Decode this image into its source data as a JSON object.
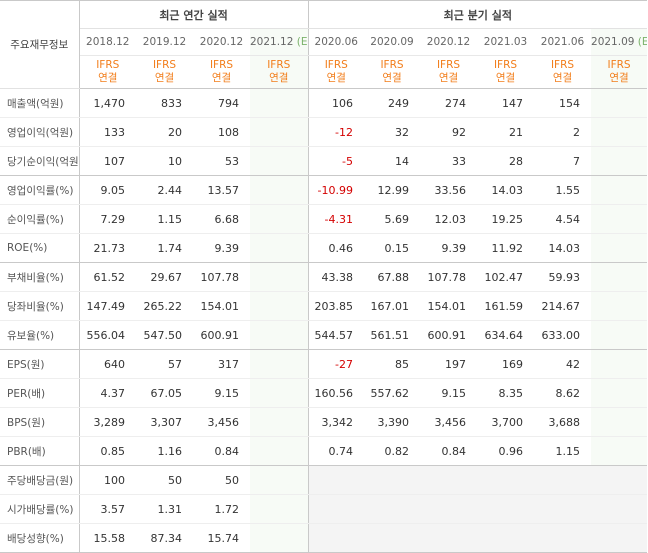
{
  "header": {
    "row_title": "주요재무정보",
    "annual_group": "최근 연간 실적",
    "quarter_group": "최근 분기 실적",
    "annual_periods": [
      "2018.12",
      "2019.12",
      "2020.12",
      "2021.12"
    ],
    "annual_est_marker": "(E)",
    "quarter_periods": [
      "2020.06",
      "2020.09",
      "2020.12",
      "2021.03",
      "2021.06",
      "2021.09"
    ],
    "quarter_est_marker": "(E)",
    "ifrs_top": "IFRS",
    "ifrs_bottom": "연결"
  },
  "rows": [
    {
      "label": "매출액(억원)",
      "annual": [
        "1,470",
        "833",
        "794",
        ""
      ],
      "quarter": [
        "106",
        "249",
        "274",
        "147",
        "154",
        ""
      ]
    },
    {
      "label": "영업이익(억원)",
      "annual": [
        "133",
        "20",
        "108",
        ""
      ],
      "quarter": [
        "-12",
        "32",
        "92",
        "21",
        "2",
        ""
      ]
    },
    {
      "label": "당기순이익(억원)",
      "annual": [
        "107",
        "10",
        "53",
        ""
      ],
      "quarter": [
        "-5",
        "14",
        "33",
        "28",
        "7",
        ""
      ]
    },
    {
      "label": "영업이익률(%)",
      "annual": [
        "9.05",
        "2.44",
        "13.57",
        ""
      ],
      "quarter": [
        "-10.99",
        "12.99",
        "33.56",
        "14.03",
        "1.55",
        ""
      ]
    },
    {
      "label": "순이익률(%)",
      "annual": [
        "7.29",
        "1.15",
        "6.68",
        ""
      ],
      "quarter": [
        "-4.31",
        "5.69",
        "12.03",
        "19.25",
        "4.54",
        ""
      ]
    },
    {
      "label": "ROE(%)",
      "annual": [
        "21.73",
        "1.74",
        "9.39",
        ""
      ],
      "quarter": [
        "0.46",
        "0.15",
        "9.39",
        "11.92",
        "14.03",
        ""
      ]
    },
    {
      "label": "부채비율(%)",
      "annual": [
        "61.52",
        "29.67",
        "107.78",
        ""
      ],
      "quarter": [
        "43.38",
        "67.88",
        "107.78",
        "102.47",
        "59.93",
        ""
      ]
    },
    {
      "label": "당좌비율(%)",
      "annual": [
        "147.49",
        "265.22",
        "154.01",
        ""
      ],
      "quarter": [
        "203.85",
        "167.01",
        "154.01",
        "161.59",
        "214.67",
        ""
      ]
    },
    {
      "label": "유보율(%)",
      "annual": [
        "556.04",
        "547.50",
        "600.91",
        ""
      ],
      "quarter": [
        "544.57",
        "561.51",
        "600.91",
        "634.64",
        "633.00",
        ""
      ]
    },
    {
      "label": "EPS(원)",
      "annual": [
        "640",
        "57",
        "317",
        ""
      ],
      "quarter": [
        "-27",
        "85",
        "197",
        "169",
        "42",
        ""
      ]
    },
    {
      "label": "PER(배)",
      "annual": [
        "4.37",
        "67.05",
        "9.15",
        ""
      ],
      "quarter": [
        "160.56",
        "557.62",
        "9.15",
        "8.35",
        "8.62",
        ""
      ]
    },
    {
      "label": "BPS(원)",
      "annual": [
        "3,289",
        "3,307",
        "3,456",
        ""
      ],
      "quarter": [
        "3,342",
        "3,390",
        "3,456",
        "3,700",
        "3,688",
        ""
      ]
    },
    {
      "label": "PBR(배)",
      "annual": [
        "0.85",
        "1.16",
        "0.84",
        ""
      ],
      "quarter": [
        "0.74",
        "0.82",
        "0.84",
        "0.96",
        "1.15",
        ""
      ]
    },
    {
      "label": "주당배당금(원)",
      "annual": [
        "100",
        "50",
        "50",
        ""
      ],
      "quarter": [
        "",
        "",
        "",
        "",
        "",
        ""
      ]
    },
    {
      "label": "시가배당률(%)",
      "annual": [
        "3.57",
        "1.31",
        "1.72",
        ""
      ],
      "quarter": [
        "",
        "",
        "",
        "",
        "",
        ""
      ]
    },
    {
      "label": "배당성향(%)",
      "annual": [
        "15.58",
        "87.34",
        "15.74",
        ""
      ],
      "quarter": [
        "",
        "",
        "",
        "",
        "",
        ""
      ]
    }
  ],
  "colors": {
    "ifrs_orange": "#f27d1a",
    "estimate_green": "#7bb26a",
    "negative_red": "#d40000",
    "estimate_bg": "#f7fbf6",
    "empty_bg": "#f4f4f4"
  }
}
